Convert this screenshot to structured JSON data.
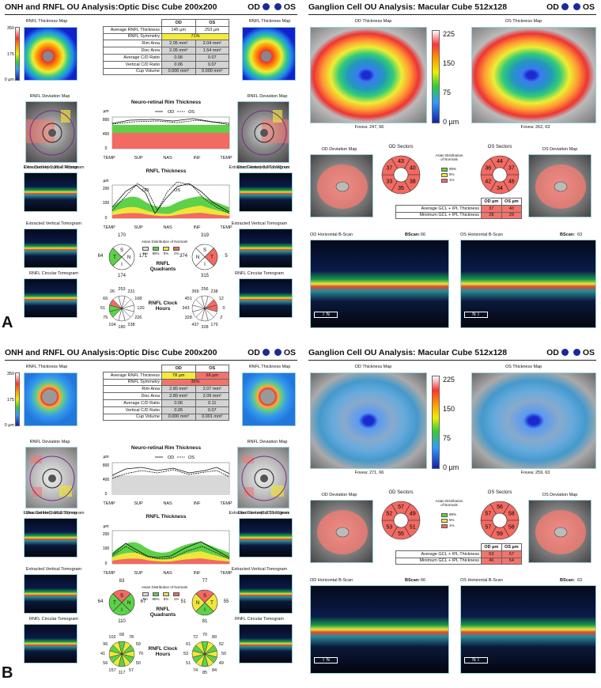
{
  "panels": [
    {
      "id": "A",
      "panel_letter": "A",
      "onh_title": "ONH and RNFL OU Analysis:Optic Disc Cube 200x200",
      "gc_title": "Ganglion Cell OU Analysis: Macular Cube 512x128",
      "od": "OD",
      "os": "OS",
      "rnfl_map_label": "RNFL Thickness Map",
      "scale_ticks": [
        "350",
        "175",
        "0 µm"
      ],
      "table": {
        "head": [
          "OD",
          "OS"
        ],
        "rows": [
          {
            "label": "Average RNFL Thickness",
            "od": "145 µm",
            "os": "253 µm"
          },
          {
            "label": "RNFL Symmetry",
            "od": "71%",
            "os": ""
          },
          {
            "label": "Rim Area",
            "od": "2.05 mm²",
            "os": "2.04 mm²"
          },
          {
            "label": "Disc Area",
            "od": "2.05 mm²",
            "os": "1.54 mm²"
          },
          {
            "label": "Average C/D Ratio",
            "od": "0.06",
            "os": "0.07"
          },
          {
            "label": "Vertical C/D Ratio",
            "od": "0.06",
            "os": "0.07"
          },
          {
            "label": "Cup Volume",
            "od": "0.000 mm³",
            "os": "0.000 mm³"
          }
        ]
      },
      "deviation_label": "RNFL Deviation Map",
      "rim_title": "Neuro-retinal Rim Thickness",
      "legend_od": "OD",
      "legend_os": "OS",
      "unit": "µm",
      "xaxis": [
        "TEMP",
        "SUP",
        "NAS",
        "INF",
        "TEMP"
      ],
      "rim_yticks": [
        "800",
        "400",
        "0"
      ],
      "rnfl_title": "RNFL Thickness",
      "rnfl_yticks": [
        "200",
        "100",
        "0"
      ],
      "disc_center_od": "Disc Center(-0.39,-0.45)mm",
      "disc_center_os": "Disc Center(-0.06,0.00)mm",
      "ext_h": "Extracted Horizontal Tomogram",
      "ext_v": "Extracted Vertical Tomogram",
      "circ": "RNFL Circular Tomogram",
      "quad_label": "RNFL Quadrants",
      "clock_label": "RNFL Clock Hours",
      "dist_title": "Asian Distribution of Normals",
      "dist_ticks": [
        "NA",
        "95%",
        "5%",
        "1%"
      ],
      "quad_od": {
        "S": "170",
        "N": "171",
        "I": "174",
        "T": "64"
      },
      "quad_os": {
        "S": "319",
        "N": "374",
        "I": "315",
        "T": "5"
      },
      "clock_od": [
        "253",
        "231",
        "168",
        "120",
        "226",
        "238",
        "180",
        "104",
        "75",
        "51",
        "66",
        "26"
      ],
      "clock_os": [
        "256",
        "238",
        "12",
        "0",
        "2",
        "179",
        "328",
        "437",
        "328",
        "343",
        "451",
        "369"
      ],
      "gc": {
        "od_map": "OD Thickness Map",
        "os_map": "OS Thickness Map",
        "scale": [
          "225",
          "150",
          "75",
          "0 µm"
        ],
        "fovea_od": "Fovea: 247, 66",
        "fovea_os": "Fovea: 262, 63",
        "od_dev": "OD Deviation Map",
        "os_dev": "OS Deviation Map",
        "od_sectors": "OD Sectors",
        "os_sectors": "OS Sectors",
        "od_sec": [
          "43",
          "40",
          "38",
          "35",
          "33",
          "37"
        ],
        "os_sec": [
          "44",
          "37",
          "46",
          "34",
          "42",
          "36"
        ],
        "dist": [
          "Asian Distribution of Normals",
          "95%",
          "5%",
          "1%"
        ],
        "tbl_head": [
          "OD µm",
          "OS µm"
        ],
        "avg_label": "Average GCL + IPL Thickness",
        "min_label": "Minimum GCL + IPL Thickness",
        "avg": [
          "37",
          "40"
        ],
        "min": [
          "28",
          "29"
        ],
        "od_bscan": "OD Horizontal B-Scan",
        "os_bscan": "OS Horizontal B-Scan",
        "bscan_lbl": "BScan:",
        "od_bscan_n": "66",
        "os_bscan_n": "63",
        "od_orient": "T  N",
        "os_orient": "N  T"
      }
    },
    {
      "id": "B",
      "panel_letter": "B",
      "onh_title": "ONH and RNFL OU Analysis:Optic Disc Cube 200x200",
      "gc_title": "Ganglion Cell OU Analysis: Macular Cube 512x128",
      "od": "OD",
      "os": "OS",
      "rnfl_map_label": "RNFL Thickness Map",
      "scale_ticks": [
        "350",
        "175",
        "0 µm"
      ],
      "table": {
        "head": [
          "OD",
          "OS"
        ],
        "rows": [
          {
            "label": "Average RNFL Thickness",
            "od": "78 µm",
            "os": "66 µm"
          },
          {
            "label": "RNFL Symmetry",
            "od": "35%",
            "os": ""
          },
          {
            "label": "Rim Area",
            "od": "2.80 mm²",
            "os": "2.07 mm²"
          },
          {
            "label": "Disc Area",
            "od": "2.80 mm²",
            "os": "2.09 mm²"
          },
          {
            "label": "Average C/D Ratio",
            "od": "0.06",
            "os": "0.11"
          },
          {
            "label": "Vertical C/D Ratio",
            "od": "0.05",
            "os": "0.07"
          },
          {
            "label": "Cup Volume",
            "od": "0.000 mm³",
            "os": "0.001 mm³"
          }
        ]
      },
      "deviation_label": "RNFL Deviation Map",
      "rim_title": "Neuro-retinal Rim Thickness",
      "legend_od": "OD",
      "legend_os": "OS",
      "unit": "µm",
      "xaxis": [
        "TEMP",
        "SUP",
        "NAS",
        "INF",
        "TEMP"
      ],
      "rim_yticks": [
        "800",
        "400",
        "0"
      ],
      "rnfl_title": "RNFL Thickness",
      "rnfl_yticks": [
        "200",
        "100",
        "0"
      ],
      "disc_center_od": "Disc Center(0.00,0.51)mm",
      "disc_center_os": "Disc Center(0.03,0.21)mm",
      "ext_h": "Extracted Horizontal Tomogram",
      "ext_v": "Extracted Vertical Tomogram",
      "circ": "RNFL Circular Tomogram",
      "quad_label": "RNFL Quadrants",
      "clock_label": "RNFL Clock Hours",
      "dist_title": "Asian Distribution of Normals",
      "dist_ticks": [
        "NA",
        "95%",
        "5%",
        "1%"
      ],
      "quad_od": {
        "S": "83",
        "N": "67",
        "I": "110",
        "T": "64"
      },
      "quad_os": {
        "S": "77",
        "N": "51",
        "I": "81",
        "T": "55"
      },
      "clock_od": [
        "68",
        "78",
        "59",
        "70",
        "50",
        "57",
        "117",
        "157",
        "56",
        "41",
        "96",
        "102"
      ],
      "clock_os": [
        "70",
        "89",
        "52",
        "50",
        "49",
        "84",
        "85",
        "74",
        "51",
        "53",
        "61",
        "72"
      ],
      "gc": {
        "od_map": "OD Thickness Map",
        "os_map": "OS Thickness Map",
        "scale": [
          "225",
          "150",
          "75",
          "0 µm"
        ],
        "fovea_od": "Fovea: 271, 66",
        "fovea_os": "Fovea: 259, 63",
        "od_dev": "OD Deviation Map",
        "os_dev": "OS Deviation Map",
        "od_sectors": "OD Sectors",
        "os_sectors": "OS Sectors",
        "od_sec": [
          "57",
          "49",
          "51",
          "55",
          "53",
          "52"
        ],
        "os_sec": [
          "56",
          "58",
          "58",
          "59",
          "57",
          "57"
        ],
        "dist": [
          "Asian Distribution of Normals",
          "95%",
          "5%",
          "1%"
        ],
        "tbl_head": [
          "OD µm",
          "OS µm"
        ],
        "avg_label": "Average GCL + IPL Thickness",
        "min_label": "Minimum GCL + IPL Thickness",
        "avg": [
          "53",
          "57"
        ],
        "min": [
          "46",
          "54"
        ],
        "od_bscan": "OD Horizontal B-Scan",
        "os_bscan": "OS Horizontal B-Scan",
        "bscan_lbl": "BScan:",
        "od_bscan_n": "66",
        "os_bscan_n": "63",
        "od_orient": "T  N",
        "os_orient": "N  T"
      }
    }
  ],
  "colors": {
    "od_dot": "#1a2a9a",
    "yellow": "#f3ea3a",
    "red": "#f2736b",
    "green": "#5ed14a"
  }
}
